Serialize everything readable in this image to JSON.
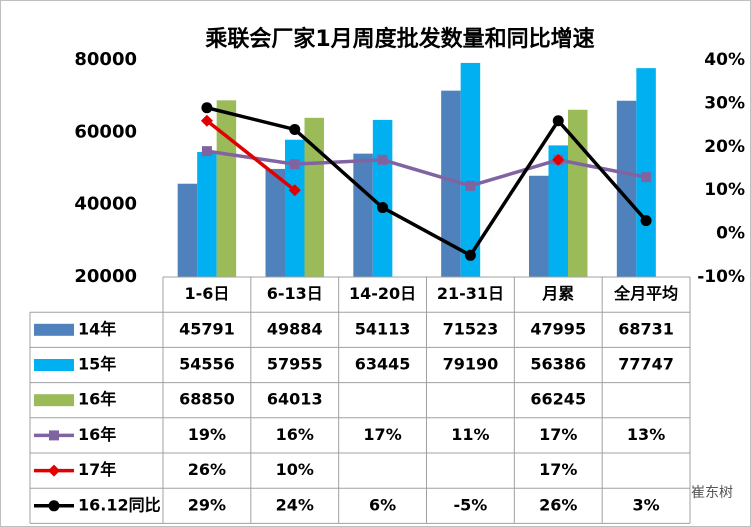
{
  "chart_data": {
    "type": "bar-line-table",
    "title": "乘联会厂家1月周度批发数量和同比增速",
    "categories": [
      "1-6日",
      "6-13日",
      "14-20日",
      "21-31日",
      "月累",
      "全月平均"
    ],
    "series": [
      {
        "name": "14年",
        "type": "bar",
        "color": "#4f81bd",
        "values": [
          45791,
          49884,
          54113,
          71523,
          47995,
          68731
        ]
      },
      {
        "name": "15年",
        "type": "bar",
        "color": "#00b0f0",
        "values": [
          54556,
          57955,
          63445,
          79190,
          56386,
          77747
        ]
      },
      {
        "name": "16年",
        "type": "bar",
        "color": "#9bbb59",
        "values": [
          68850,
          64013,
          null,
          null,
          66245,
          null
        ]
      },
      {
        "name": "16年",
        "type": "line",
        "axis": "y2",
        "marker": "square",
        "color": "#8064a2",
        "values": [
          19,
          16,
          17,
          11,
          17,
          13
        ],
        "value_labels": [
          "19%",
          "16%",
          "17%",
          "11%",
          "17%",
          "13%"
        ]
      },
      {
        "name": "17年",
        "type": "line",
        "axis": "y2",
        "marker": "diamond",
        "color": "#e00000",
        "values": [
          26,
          10,
          null,
          null,
          17,
          null
        ],
        "value_labels": [
          "26%",
          "10%",
          null,
          null,
          "17%",
          null
        ]
      },
      {
        "name": "16.12同比",
        "type": "line",
        "axis": "y2",
        "marker": "circle",
        "color": "#000000",
        "values": [
          29,
          24,
          6,
          -5,
          26,
          3
        ],
        "value_labels": [
          "29%",
          "24%",
          "6%",
          "-5%",
          "26%",
          "3%"
        ]
      }
    ],
    "ylim": [
      20000,
      80000
    ],
    "yticks": [
      20000,
      40000,
      60000,
      80000
    ],
    "y2lim": [
      -10,
      40
    ],
    "y2ticks": [
      {
        "value": -10,
        "label": "-10%"
      },
      {
        "value": 0,
        "label": "0%"
      },
      {
        "value": 10,
        "label": "10%"
      },
      {
        "value": 20,
        "label": "20%"
      },
      {
        "value": 30,
        "label": "30%"
      },
      {
        "value": 40,
        "label": "40%"
      }
    ],
    "watermark": "崔东树"
  }
}
